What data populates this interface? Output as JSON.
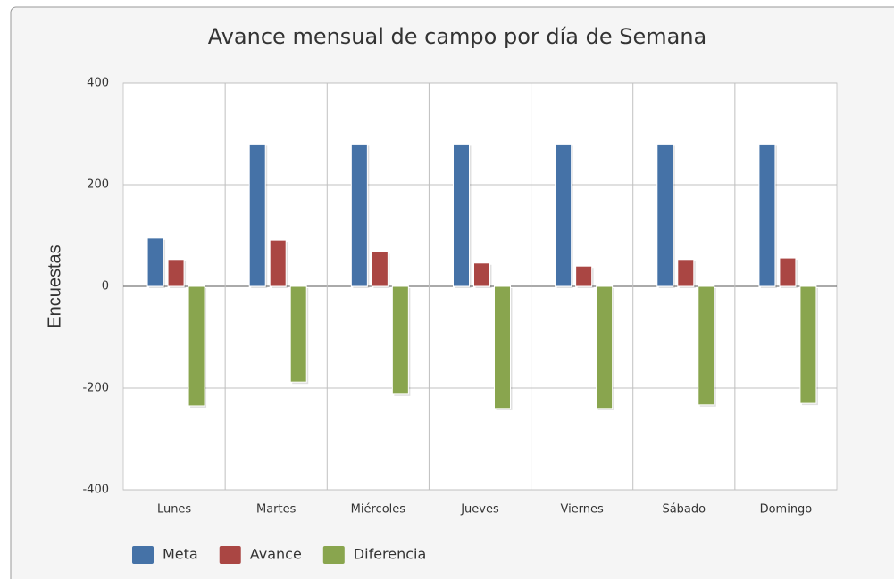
{
  "chart_data": {
    "type": "bar",
    "title": "Avance mensual de campo por día de Semana",
    "ylabel": "Encuestas",
    "categories": [
      "Lunes",
      "Martes",
      "Miércoles",
      "Jueves",
      "Viernes",
      "Sábado",
      "Domingo"
    ],
    "series": [
      {
        "name": "Meta",
        "color": "#4572a7",
        "values": [
          95,
          280,
          280,
          280,
          280,
          280,
          280
        ]
      },
      {
        "name": "Avance",
        "color": "#aa4643",
        "values": [
          53,
          91,
          68,
          46,
          40,
          53,
          56
        ]
      },
      {
        "name": "Diferencia",
        "color": "#89a54e",
        "values": [
          -235,
          -188,
          -212,
          -240,
          -240,
          -233,
          -230
        ]
      }
    ],
    "ylim": [
      -400,
      400
    ],
    "yticks": [
      -400,
      -200,
      0,
      200,
      400
    ],
    "grid": true,
    "legend": "bottom-left"
  }
}
